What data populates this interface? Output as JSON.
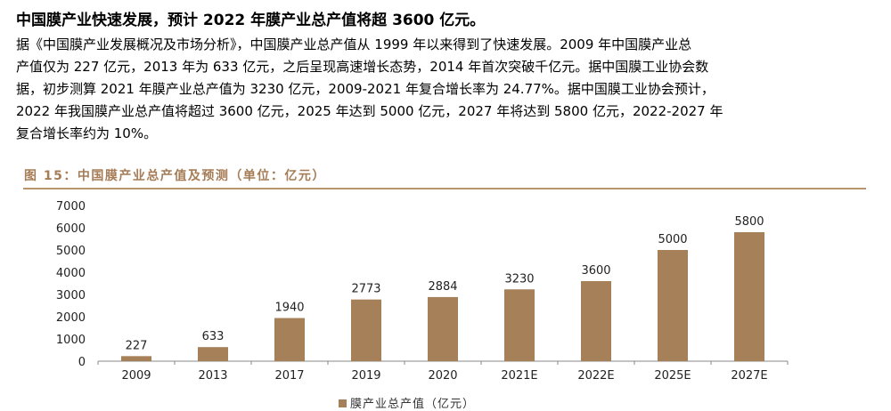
{
  "title": "中国膜产业快速发展，预计 2022 年膜产业总产值将超 3600 亿元。",
  "paragraph_lines": [
    "据《中国膜产业发展概况及市场分析》，中国膜产业总产值从 1999 年以来得到了快速发展。2009 年中国膜产业总",
    "产值仅为 227 亿元，2013 年为 633 亿元，之后呈现高速增长态势，2014 年首次突破千亿元。据中国膜工业协会数",
    "据，初步测算 2021 年膜产业总产值为 3230 亿元，2009-2021 年复合增长率为 24.77%。据中国膜工业协会预计，",
    "2022 年我国膜产业总产值将超过 3600 亿元，2025 年达到 5000 亿元，2027 年将达到 5800 亿元，2022-2027 年",
    "复合增长率约为 10%。"
  ],
  "figure_caption": "图 15：中国膜产业总产值及预测（单位：亿元）",
  "colors": {
    "bar": "#a68058",
    "caption": "#a57c55"
  },
  "chart_data": {
    "type": "bar",
    "categories": [
      "2009",
      "2013",
      "2017",
      "2019",
      "2020",
      "2021E",
      "2022E",
      "2025E",
      "2027E"
    ],
    "values": [
      227,
      633,
      1940,
      2773,
      2884,
      3230,
      3600,
      5000,
      5800
    ],
    "ylim": [
      0,
      7000
    ],
    "yticks": [
      0,
      1000,
      2000,
      3000,
      4000,
      5000,
      6000,
      7000
    ],
    "legend": "膜产业总产值（亿元）",
    "legend_position": "bottom",
    "grid": false
  }
}
